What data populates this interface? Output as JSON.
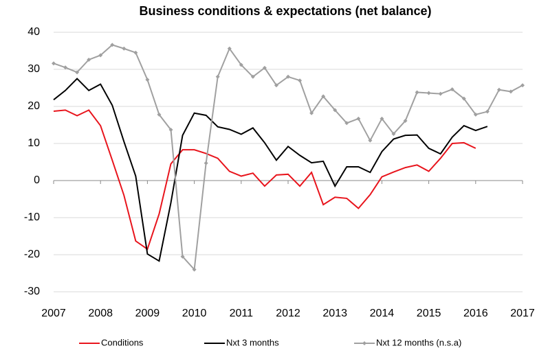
{
  "chart_data": {
    "type": "line",
    "title": "Business conditions & expectations (net balance)",
    "x": [
      2007,
      2007.25,
      2007.5,
      2007.75,
      2008,
      2008.25,
      2008.5,
      2008.75,
      2009,
      2009.25,
      2009.5,
      2009.75,
      2010,
      2010.25,
      2010.5,
      2010.75,
      2011,
      2011.25,
      2011.5,
      2011.75,
      2012,
      2012.25,
      2012.5,
      2012.75,
      2013,
      2013.25,
      2013.5,
      2013.75,
      2014,
      2014.25,
      2014.5,
      2014.75,
      2015,
      2015.25,
      2015.5,
      2015.75,
      2016,
      2016.25,
      2016.5,
      2016.75,
      2017
    ],
    "series": [
      {
        "name": "Conditions",
        "color": "#e8141c",
        "marker": false,
        "values": [
          18.7,
          19,
          17.5,
          19,
          14.8,
          5.5,
          -4,
          -16.3,
          -18.5,
          -9,
          4.5,
          8.3,
          8.3,
          7.3,
          6,
          2.5,
          1.2,
          2,
          -1.5,
          1.5,
          1.7,
          -1.5,
          2.2,
          -6.5,
          -4.5,
          -4.8,
          -7.5,
          -3.8,
          1,
          2.3,
          3.5,
          4.2,
          2.5,
          6,
          10,
          10.2,
          8.7,
          null,
          null,
          null,
          null
        ]
      },
      {
        "name": "Nxt 3 months",
        "color": "#000000",
        "marker": false,
        "values": [
          21.8,
          24.3,
          27.5,
          24.3,
          26,
          20.3,
          10.5,
          1.2,
          -19.8,
          -21.7,
          -6,
          12.2,
          18.2,
          17.6,
          14.5,
          13.8,
          12.5,
          14.2,
          10.2,
          5.5,
          9.2,
          6.8,
          4.8,
          5.2,
          -1.5,
          3.7,
          3.7,
          2.2,
          7.8,
          11.2,
          12.2,
          12.3,
          8.7,
          7.2,
          11.7,
          14.8,
          13.5,
          14.6,
          null,
          null,
          null
        ]
      },
      {
        "name": "Nxt 12 months (n.s.a)",
        "color": "#a0a0a0",
        "marker": true,
        "values": [
          31.6,
          30.5,
          29.2,
          32.6,
          33.8,
          36.6,
          35.6,
          34.5,
          27.2,
          17.8,
          13.7,
          -20.5,
          -24,
          4.7,
          28,
          35.6,
          31.2,
          28,
          30.4,
          25.7,
          28,
          27,
          18.2,
          22.7,
          19,
          15.5,
          16.7,
          10.8,
          16.7,
          12.6,
          16.1,
          23.8,
          23.6,
          23.4,
          24.6,
          22.1,
          17.8,
          18.6,
          24.5,
          24,
          25.7
        ]
      }
    ],
    "xlim": [
      2007,
      2017
    ],
    "xticks": [
      2007,
      2008,
      2009,
      2010,
      2011,
      2012,
      2013,
      2014,
      2015,
      2016,
      2017
    ],
    "ylim": [
      -30,
      40
    ],
    "yticks": [
      -30,
      -20,
      -10,
      0,
      10,
      20,
      30,
      40
    ],
    "grid": true,
    "legend": "bottom"
  }
}
